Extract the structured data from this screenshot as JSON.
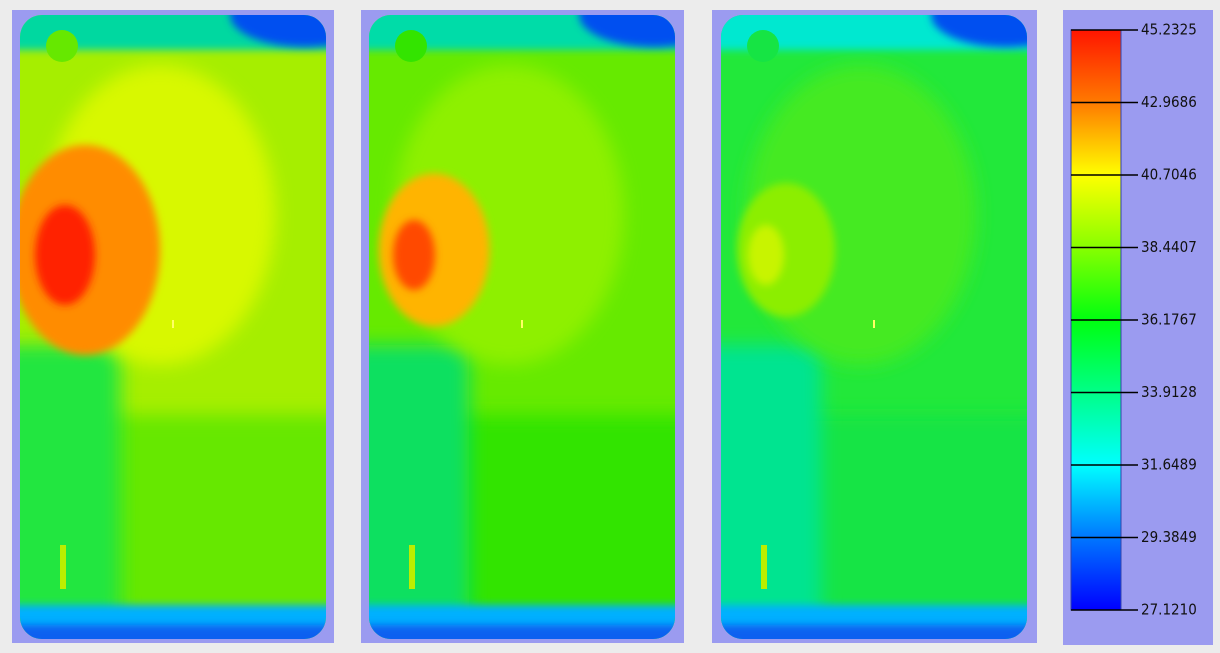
{
  "colorbar": {
    "ticks": [
      45.2325,
      42.9686,
      40.7046,
      38.4407,
      36.1767,
      33.9128,
      31.6489,
      29.3849,
      {
        "value": 27.121,
        "label": "27.1210"
      }
    ]
  }
}
